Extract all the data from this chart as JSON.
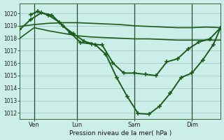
{
  "background_color": "#cceee8",
  "grid_color": "#aacccc",
  "line_color": "#1a5c1a",
  "xlabel": "Pression niveau de la mer( hPa )",
  "ylim": [
    1011.5,
    1020.8
  ],
  "yticks": [
    1012,
    1013,
    1014,
    1015,
    1016,
    1017,
    1018,
    1019,
    1020
  ],
  "xlim": [
    0,
    56
  ],
  "xtick_positions": [
    4,
    16,
    32,
    48
  ],
  "xtick_labels": [
    "Ven",
    "Lun",
    "Sam",
    "Dim"
  ],
  "vlines": [
    4,
    16,
    32,
    48
  ],
  "series": [
    {
      "x": [
        0,
        4,
        8,
        12,
        16,
        20,
        24,
        28,
        32,
        36,
        40,
        44,
        48,
        52,
        56
      ],
      "y": [
        1018.95,
        1019.1,
        1019.2,
        1019.25,
        1019.25,
        1019.2,
        1019.15,
        1019.1,
        1019.0,
        1018.95,
        1018.9,
        1018.85,
        1018.85,
        1018.9,
        1018.85
      ],
      "marker": false,
      "linewidth": 1.2
    },
    {
      "x": [
        0,
        4,
        8,
        12,
        16,
        20,
        24,
        28,
        32,
        36,
        40,
        44,
        48,
        52,
        56
      ],
      "y": [
        1018.0,
        1018.85,
        1018.6,
        1018.4,
        1018.2,
        1018.1,
        1018.05,
        1018.0,
        1017.95,
        1017.95,
        1017.9,
        1017.85,
        1017.85,
        1017.85,
        1017.85
      ],
      "marker": false,
      "linewidth": 1.2
    },
    {
      "x": [
        0,
        3,
        6,
        9,
        12,
        15,
        18,
        21,
        24,
        27,
        30,
        33,
        36,
        39,
        42,
        45,
        48,
        51,
        54,
        56
      ],
      "y": [
        1018.7,
        1019.5,
        1020.05,
        1019.85,
        1019.0,
        1018.35,
        1017.75,
        1017.5,
        1016.7,
        1014.85,
        1013.3,
        1011.95,
        1011.9,
        1012.55,
        1013.6,
        1014.85,
        1015.2,
        1016.25,
        1017.5,
        1018.85
      ],
      "marker": true,
      "linewidth": 1.4
    },
    {
      "x": [
        3,
        5,
        8,
        11,
        14,
        17,
        20,
        23,
        26,
        29,
        32,
        35,
        38,
        41,
        44,
        47,
        50,
        53,
        56
      ],
      "y": [
        1019.9,
        1020.15,
        1019.85,
        1019.3,
        1018.45,
        1017.65,
        1017.55,
        1017.45,
        1016.0,
        1015.2,
        1015.2,
        1015.1,
        1015.0,
        1016.1,
        1016.35,
        1017.15,
        1017.7,
        1017.95,
        1018.85
      ],
      "marker": true,
      "linewidth": 1.4
    }
  ]
}
